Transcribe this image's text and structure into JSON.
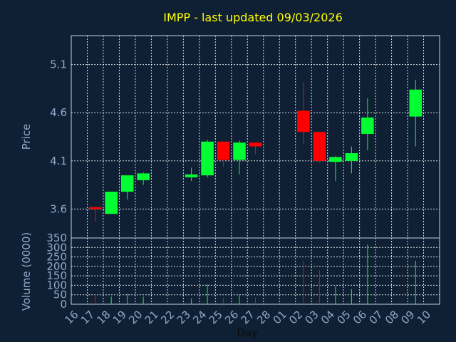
{
  "chart_data": [
    {
      "type": "candlestick",
      "title": "IMPP - last updated 09/03/2026",
      "xlabel": "Day",
      "ylabel": "Price",
      "ylim": [
        3.3,
        5.4
      ],
      "yticks": [
        "3.6",
        "4.1",
        "4.6",
        "5.1"
      ],
      "x_ticks": [
        "16",
        "17",
        "18",
        "19",
        "20",
        "21",
        "22",
        "23",
        "24",
        "25",
        "26",
        "27",
        "28",
        "01",
        "02",
        "03",
        "04",
        "05",
        "06",
        "07",
        "08",
        "09",
        "10"
      ],
      "grid": true,
      "colors": {
        "up": "#00ff33",
        "down": "#ff0000",
        "text": "#ffff00",
        "axis_text": "#8fa8c8",
        "grid": "#ffffff"
      },
      "candles": [
        {
          "day": "17",
          "open": 3.62,
          "high": 3.62,
          "low": 3.47,
          "close": 3.6
        },
        {
          "day": "18",
          "open": 3.55,
          "high": 3.78,
          "low": 3.55,
          "close": 3.78
        },
        {
          "day": "19",
          "open": 3.78,
          "high": 3.95,
          "low": 3.7,
          "close": 3.95
        },
        {
          "day": "20",
          "open": 3.9,
          "high": 3.98,
          "low": 3.85,
          "close": 3.97
        },
        {
          "day": "23",
          "open": 3.93,
          "high": 4.03,
          "low": 3.89,
          "close": 3.96
        },
        {
          "day": "24",
          "open": 3.95,
          "high": 4.32,
          "low": 3.93,
          "close": 4.3
        },
        {
          "day": "25",
          "open": 4.3,
          "high": 4.3,
          "low": 4.04,
          "close": 4.11
        },
        {
          "day": "26",
          "open": 4.11,
          "high": 4.31,
          "low": 3.96,
          "close": 4.29
        },
        {
          "day": "27",
          "open": 4.29,
          "high": 4.29,
          "low": 4.17,
          "close": 4.25
        },
        {
          "day": "02",
          "open": 4.62,
          "high": 4.92,
          "low": 4.27,
          "close": 4.4
        },
        {
          "day": "03",
          "open": 4.4,
          "high": 4.4,
          "low": 4.08,
          "close": 4.1
        },
        {
          "day": "04",
          "open": 4.09,
          "high": 4.15,
          "low": 3.89,
          "close": 4.14
        },
        {
          "day": "05",
          "open": 4.1,
          "high": 4.25,
          "low": 3.97,
          "close": 4.18
        },
        {
          "day": "06",
          "open": 4.38,
          "high": 4.75,
          "low": 4.21,
          "close": 4.55
        },
        {
          "day": "09",
          "open": 4.56,
          "high": 4.94,
          "low": 4.25,
          "close": 4.84
        }
      ]
    },
    {
      "type": "bar",
      "ylabel": "Volume (0000)",
      "xlabel": "Day",
      "ylim": [
        0,
        350
      ],
      "yticks": [
        "0",
        "50",
        "100",
        "150",
        "200",
        "250",
        "300",
        "350"
      ],
      "series": [
        {
          "values": [
            {
              "day": "17",
              "volume": 50,
              "direction": "down"
            },
            {
              "day": "18",
              "volume": 40,
              "direction": "up"
            },
            {
              "day": "19",
              "volume": 55,
              "direction": "up"
            },
            {
              "day": "20",
              "volume": 40,
              "direction": "up"
            },
            {
              "day": "23",
              "volume": 30,
              "direction": "up"
            },
            {
              "day": "24",
              "volume": 105,
              "direction": "up"
            },
            {
              "day": "25",
              "volume": 35,
              "direction": "down"
            },
            {
              "day": "26",
              "volume": 50,
              "direction": "up"
            },
            {
              "day": "27",
              "volume": 35,
              "direction": "down"
            },
            {
              "day": "02",
              "volume": 230,
              "direction": "down"
            },
            {
              "day": "03",
              "volume": 180,
              "direction": "down"
            },
            {
              "day": "04",
              "volume": 95,
              "direction": "up"
            },
            {
              "day": "05",
              "volume": 80,
              "direction": "up"
            },
            {
              "day": "06",
              "volume": 315,
              "direction": "up"
            },
            {
              "day": "09",
              "volume": 230,
              "direction": "up"
            }
          ]
        }
      ]
    }
  ]
}
